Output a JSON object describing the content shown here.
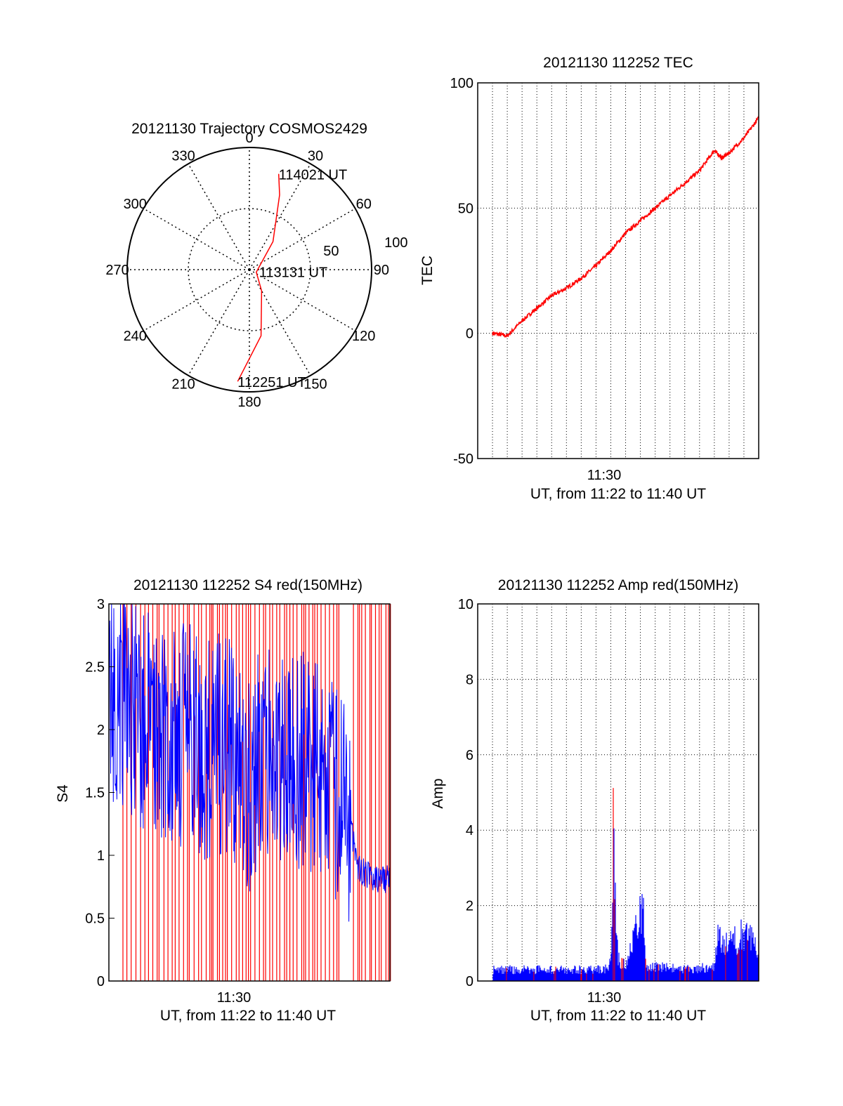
{
  "chart_data": [
    {
      "id": "trajectory",
      "type": "polar",
      "title": "20121130 Trajectory COSMOS2429",
      "azimuth_labels": [
        "0",
        "30",
        "60",
        "90",
        "120",
        "150",
        "180",
        "210",
        "240",
        "270",
        "300",
        "330"
      ],
      "ring_labels": [
        "50",
        "100"
      ],
      "rmax": 100,
      "track": [
        {
          "az": 186,
          "r": 92
        },
        {
          "az": 170,
          "r": 55
        },
        {
          "az": 150,
          "r": 20
        },
        {
          "az": 110,
          "r": 6
        },
        {
          "az": 40,
          "r": 30
        },
        {
          "az": 22,
          "r": 66
        },
        {
          "az": 17,
          "r": 82
        }
      ],
      "annotations": [
        {
          "text": "114021 UT",
          "az": 17,
          "r": 82
        },
        {
          "text": "113131 UT",
          "az": 100,
          "r": 8
        },
        {
          "text": "112251 UT",
          "az": 186,
          "r": 92
        }
      ],
      "colors": {
        "track": "#ff0000",
        "grid": "#000000"
      }
    },
    {
      "id": "tec",
      "type": "line",
      "title": "20121130 112252 TEC",
      "ylabel": "TEC",
      "xlabel": "UT, from 11:22 to 11:40 UT",
      "xticks": [
        "11:30"
      ],
      "xlim": [
        "11:21",
        "11:40"
      ],
      "ylim": [
        -50,
        100
      ],
      "yticks": [
        "-50",
        "0",
        "50",
        "100"
      ],
      "grid": true,
      "series": [
        {
          "x": [
            "11:22:00",
            "11:23:00",
            "11:24:00",
            "11:25:00",
            "11:26:00",
            "11:27:00",
            "11:28:00",
            "11:29:00",
            "11:30:00",
            "11:31:00",
            "11:32:00",
            "11:33:00",
            "11:34:00",
            "11:35:00",
            "11:36:00",
            "11:37:00",
            "11:37:30",
            "11:38:00",
            "11:39:00",
            "11:40:00"
          ],
          "values": [
            0,
            -1,
            5,
            10,
            15,
            18,
            22,
            27,
            33,
            40,
            45,
            50,
            55,
            60,
            65,
            73,
            70,
            72,
            78,
            86
          ]
        }
      ],
      "colors": {
        "line": "#ff0000"
      }
    },
    {
      "id": "s4",
      "type": "line",
      "title": "20121130 112252 S4 red(150MHz)",
      "ylabel": "S4",
      "xlabel": "UT, from 11:22 to 11:40 UT",
      "xticks": [
        "11:30"
      ],
      "xlim": [
        "11:22",
        "11:40"
      ],
      "ylim": [
        0,
        3
      ],
      "yticks": [
        "0",
        "0.5",
        "1",
        "1.5",
        "2",
        "2.5",
        "3"
      ],
      "grid": false,
      "series": [
        {
          "x": [
            "11:22:00",
            "11:23:00",
            "11:24:00",
            "11:25:00",
            "11:26:00",
            "11:27:00",
            "11:28:00",
            "11:29:00",
            "11:30:00",
            "11:31:00",
            "11:32:00",
            "11:33:00",
            "11:34:00",
            "11:35:00",
            "11:36:00",
            "11:37:00",
            "11:38:00",
            "11:39:00",
            "11:40:00"
          ],
          "values": [
            2.2,
            2.3,
            2.0,
            2.1,
            1.9,
            2.0,
            1.8,
            1.9,
            1.8,
            1.6,
            1.8,
            1.7,
            1.8,
            1.7,
            1.6,
            1.5,
            0.9,
            0.8,
            0.8
          ]
        }
      ],
      "red_dropouts": {
        "from": "11:22",
        "to": "11:40",
        "range": [
          0,
          3
        ]
      },
      "colors": {
        "primary": "#0000ff",
        "secondary": "#ff0000"
      }
    },
    {
      "id": "amp",
      "type": "line",
      "title": "20121130 112252 Amp red(150MHz)",
      "ylabel": "Amp",
      "xlabel": "UT, from 11:22 to 11:40 UT",
      "xticks": [
        "11:30"
      ],
      "xlim": [
        "11:21",
        "11:40"
      ],
      "ylim": [
        0,
        10
      ],
      "yticks": [
        "0",
        "2",
        "4",
        "6",
        "8",
        "10"
      ],
      "grid": true,
      "series": [
        {
          "x": [
            "11:22:00",
            "11:25:00",
            "11:28:00",
            "11:29:30",
            "11:30:00",
            "11:30:10",
            "11:30:30",
            "11:31:00",
            "11:31:50",
            "11:32:10",
            "11:32:20",
            "11:33:00",
            "11:35:00",
            "11:37:00",
            "11:37:10",
            "11:38:00",
            "11:39:00",
            "11:40:00"
          ],
          "values": [
            0.4,
            0.4,
            0.4,
            0.4,
            0.6,
            5.0,
            0.8,
            0.5,
            2.0,
            2.7,
            0.6,
            0.5,
            0.4,
            0.5,
            1.5,
            1.4,
            1.6,
            1.2
          ]
        }
      ],
      "colors": {
        "primary": "#0000ff",
        "secondary": "#ff0000"
      }
    }
  ]
}
